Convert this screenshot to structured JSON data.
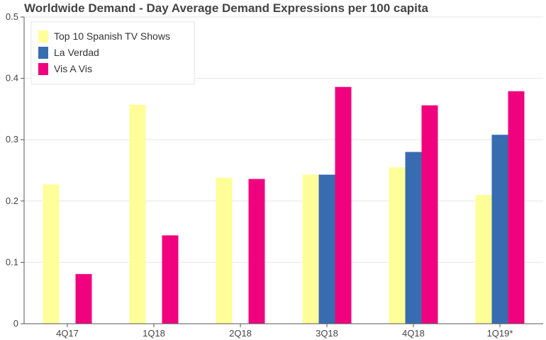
{
  "chart_data": {
    "type": "bar",
    "title": "Worldwide Demand - Day Average Demand Expressions per 100 capita",
    "xlabel": "",
    "ylabel": "",
    "categories": [
      "4Q17",
      "1Q18",
      "2Q18",
      "3Q18",
      "4Q18",
      "1Q19*"
    ],
    "series": [
      {
        "name": "Top 10 Spanish TV Shows",
        "color": "#ffff99",
        "values": [
          0.227,
          0.357,
          0.238,
          0.243,
          0.255,
          0.21
        ]
      },
      {
        "name": "La Verdad",
        "color": "#386cb0",
        "values": [
          null,
          null,
          null,
          0.243,
          0.28,
          0.308
        ]
      },
      {
        "name": "Vis A Vis",
        "color": "#f0027f",
        "values": [
          0.081,
          0.144,
          0.236,
          0.386,
          0.356,
          0.379
        ]
      }
    ],
    "ylim": [
      0,
      0.5
    ],
    "yticks": [
      "0",
      "0.1",
      "0.2",
      "0.3",
      "0.4",
      "0.5"
    ],
    "grid": true,
    "legend_position": "top-left"
  }
}
